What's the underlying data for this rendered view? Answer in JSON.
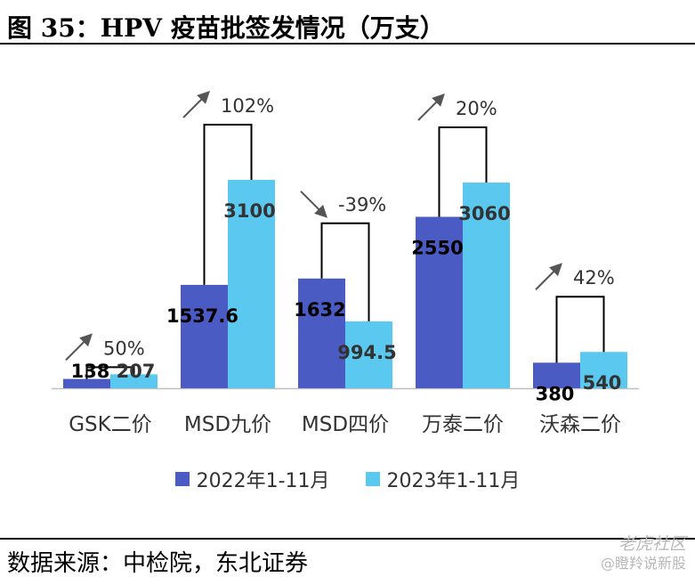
{
  "figure": {
    "title": "图 35：HPV 疫苗批签发情况（万支）",
    "source": "数据来源：中检院，东北证券"
  },
  "watermark": {
    "line1": "老虎社区",
    "line2": "@瞪羚说新股"
  },
  "chart_data": {
    "type": "bar",
    "categories": [
      "GSK二价",
      "MSD九价",
      "MSD四价",
      "万泰二价",
      "沃森二价"
    ],
    "series": [
      {
        "name": "2022年1-11月",
        "values": [
          138,
          1537.6,
          1632,
          2550,
          380
        ],
        "value_labels": [
          "138",
          "1537.6",
          "1632",
          "2550",
          "380"
        ],
        "color": "#4a5bc4"
      },
      {
        "name": "2023年1-11月",
        "values": [
          207,
          3100,
          994.5,
          3060,
          540
        ],
        "value_labels": [
          "207",
          "3100",
          "994.5",
          "3060",
          "540"
        ],
        "color": "#5bc8ef"
      }
    ],
    "growth_labels": [
      "50%",
      "102%",
      "-39%",
      "20%",
      "42%"
    ],
    "growth_direction": [
      "up",
      "up",
      "down",
      "up",
      "up"
    ],
    "ylim": [
      0,
      3500
    ],
    "grid": false,
    "legend_position": "bottom"
  }
}
